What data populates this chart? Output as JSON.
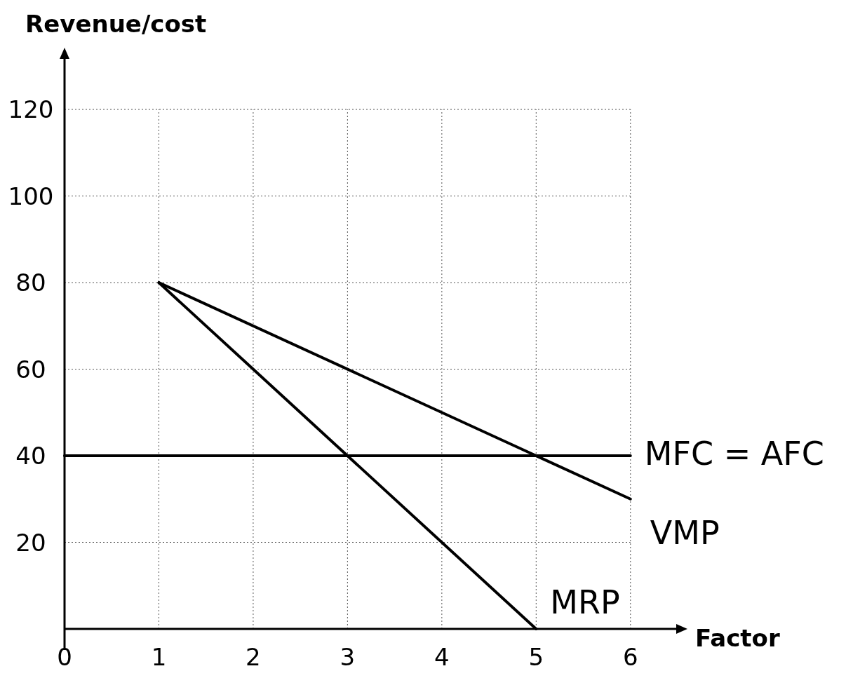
{
  "chart_data": {
    "type": "line",
    "xlabel": "Factor",
    "ylabel": "Revenue/cost",
    "xlim": [
      0,
      6.5
    ],
    "ylim": [
      0,
      132
    ],
    "xticks": [
      0,
      1,
      2,
      3,
      4,
      5,
      6
    ],
    "yticks": [
      20,
      40,
      60,
      80,
      100,
      120
    ],
    "grid": true,
    "legend": false,
    "marker": "none",
    "line_style": "solid",
    "series": [
      {
        "name": "MFC = AFC",
        "color": "#000000",
        "x": [
          0,
          6
        ],
        "values": [
          40,
          40
        ]
      },
      {
        "name": "VMP",
        "color": "#000000",
        "x": [
          1,
          6
        ],
        "values": [
          80,
          30
        ]
      },
      {
        "name": "MRP",
        "color": "#000000",
        "x": [
          1,
          5
        ],
        "values": [
          80,
          0
        ]
      }
    ]
  }
}
